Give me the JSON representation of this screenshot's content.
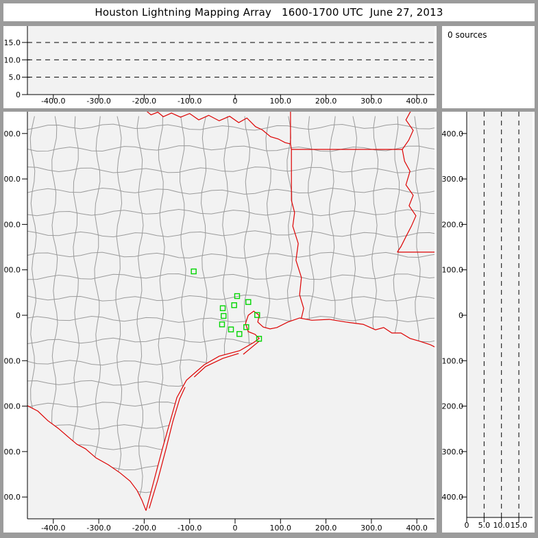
{
  "window": {
    "title": "Houston Lightning Mapping Array   1600-1700 UTC  June 27, 2013"
  },
  "status": {
    "sources_label": "0 sources"
  },
  "colors": {
    "frame": "#9b9b9b",
    "panel_bg": "#ffffff",
    "plot_bg": "#f2f2f2",
    "county_line": "#9a9a9a",
    "state_line": "#dd0000",
    "station": "#00d500",
    "axis": "#000000"
  },
  "chart_data": {
    "type": "scatter",
    "title": "Houston Lightning Mapping Array   1600-1700 UTC  June 27, 2013",
    "source_count_label": "0 sources",
    "panels": {
      "alt_ew": {
        "description": "altitude (km) vs east-west distance (km), empty - 0 sources",
        "xlim": [
          -457,
          443
        ],
        "ylim": [
          0,
          20
        ],
        "x_ticks": [
          -400,
          -300,
          -200,
          -100,
          0,
          100,
          200,
          300,
          400
        ],
        "x_tick_labels": [
          "-400.0",
          "-300.0",
          "-200.0",
          "-100.0",
          "0",
          "100.0",
          "200.0",
          "300.0",
          "400.0"
        ],
        "y_ticks": [
          0,
          5,
          10,
          15
        ],
        "y_tick_labels": [
          "0",
          "5.0",
          "10.0",
          "15.0"
        ],
        "grid_y_dashed": [
          5,
          10,
          15
        ],
        "points": []
      },
      "plan_view": {
        "description": "plan view map, km east-west vs km north-south centered on Houston",
        "xlim": [
          -457,
          439
        ],
        "ylim": [
          -448,
          448
        ],
        "x_ticks": [
          -400,
          -300,
          -200,
          -100,
          0,
          100,
          200,
          300,
          400
        ],
        "x_tick_labels": [
          "-400.0",
          "-300.0",
          "-200.0",
          "-100.0",
          "0",
          "100.0",
          "200.0",
          "300.0",
          "400.0"
        ],
        "y_ticks": [
          400,
          300,
          200,
          100,
          0,
          -100,
          -200,
          -300,
          -400
        ],
        "y_tick_labels": [
          "400.0",
          "300.0",
          "200.0",
          "100.0",
          "0",
          "-100.0",
          "-200.0",
          "-300.0",
          "-400.0"
        ],
        "lightning_points": [],
        "stations_km": [
          [
            -91,
            96.5
          ],
          [
            4.5,
            42.2
          ],
          [
            29.1,
            29.1
          ],
          [
            -2.0,
            22.2
          ],
          [
            -27.1,
            15.5
          ],
          [
            48.7,
            0.5
          ],
          [
            -25.2,
            -1.5
          ],
          [
            -28.7,
            -20.1
          ],
          [
            24.6,
            -26.1
          ],
          [
            -9.0,
            -31.2
          ],
          [
            9.5,
            -41.2
          ],
          [
            52.8,
            -51.7
          ]
        ],
        "state_borders_km": {
          "red_river_tx_ok": [
            [
              -198,
              452
            ],
            [
              -185,
              441
            ],
            [
              -170,
              447
            ],
            [
              -158,
              437
            ],
            [
              -140,
              445
            ],
            [
              -120,
              436
            ],
            [
              -100,
              444
            ],
            [
              -80,
              430
            ],
            [
              -58,
              440
            ],
            [
              -35,
              428
            ],
            [
              -12,
              438
            ],
            [
              8,
              424
            ],
            [
              26,
              434
            ],
            [
              45,
              415
            ],
            [
              60,
              408
            ],
            [
              78,
              393
            ],
            [
              95,
              388
            ],
            [
              110,
              380
            ],
            [
              122,
              377
            ]
          ],
          "ok_ar_tx_ar": [
            [
              122,
              452
            ],
            [
              122,
              377
            ],
            [
              124,
              365
            ]
          ],
          "ar_la": [
            [
              124,
              365
            ],
            [
              368,
              365
            ]
          ],
          "tx_la_sabine": [
            [
              124,
              365
            ],
            [
              124,
              253
            ],
            [
              131,
              226
            ],
            [
              127,
              196
            ],
            [
              139,
              158
            ],
            [
              134,
              121
            ],
            [
              146,
              83
            ],
            [
              142,
              45
            ],
            [
              151,
              15
            ],
            [
              146,
              -6
            ]
          ],
          "mississippi_river": [
            [
              388,
              452
            ],
            [
              376,
              430
            ],
            [
              392,
              407
            ],
            [
              382,
              385
            ],
            [
              368,
              365
            ],
            [
              373,
              339
            ],
            [
              385,
              317
            ],
            [
              376,
              287
            ],
            [
              392,
              264
            ],
            [
              383,
              241
            ],
            [
              398,
              219
            ],
            [
              388,
              196
            ],
            [
              376,
              173
            ],
            [
              365,
              151
            ],
            [
              357,
              139
            ]
          ],
          "la_ms": [
            [
              357,
              139
            ],
            [
              460,
              139
            ]
          ],
          "rio_grande": [
            [
              -457,
              -199
            ],
            [
              -434,
              -211
            ],
            [
              -412,
              -232
            ],
            [
              -389,
              -249
            ],
            [
              -367,
              -268
            ],
            [
              -348,
              -284
            ],
            [
              -329,
              -294
            ],
            [
              -306,
              -314
            ],
            [
              -279,
              -329
            ],
            [
              -253,
              -347
            ],
            [
              -231,
              -365
            ],
            [
              -216,
              -385
            ],
            [
              -205,
              -407
            ],
            [
              -196,
              -430
            ]
          ],
          "gulf_coast": [
            [
              -196,
              -430
            ],
            [
              -178,
              -362
            ],
            [
              -160,
              -294
            ],
            [
              -143,
              -234
            ],
            [
              -128,
              -181
            ],
            [
              -107,
              -143
            ],
            [
              -90,
              -128
            ],
            [
              -68,
              -109
            ],
            [
              -35,
              -90
            ],
            [
              10,
              -78
            ],
            [
              41,
              -60
            ],
            [
              53,
              -51
            ],
            [
              44,
              -42
            ],
            [
              29,
              -36
            ],
            [
              23,
              -18
            ],
            [
              29,
              0
            ],
            [
              41,
              9
            ],
            [
              53,
              0
            ],
            [
              50,
              -15
            ],
            [
              62,
              -26
            ],
            [
              77,
              -30
            ],
            [
              92,
              -27
            ],
            [
              116,
              -15
            ],
            [
              142,
              -6
            ],
            [
              169,
              -11
            ],
            [
              207,
              -9
            ],
            [
              244,
              -15
            ],
            [
              282,
              -20
            ],
            [
              309,
              -32
            ],
            [
              327,
              -27
            ],
            [
              345,
              -39
            ],
            [
              365,
              -39
            ],
            [
              385,
              -51
            ],
            [
              406,
              -57
            ],
            [
              430,
              -65
            ],
            [
              456,
              -78
            ]
          ],
          "barrier_padre": [
            [
              -189,
              -425
            ],
            [
              -170,
              -362
            ],
            [
              -152,
              -294
            ],
            [
              -137,
              -234
            ],
            [
              -122,
              -184
            ],
            [
              -110,
              -158
            ]
          ],
          "barrier_matagorda": [
            [
              -90,
              -136
            ],
            [
              -65,
              -113
            ],
            [
              -27,
              -95
            ],
            [
              8,
              -84
            ]
          ],
          "barrier_galveston": [
            [
              18,
              -86
            ],
            [
              53,
              -57
            ]
          ]
        },
        "county_grid": {
          "col_start": -444,
          "col_step": 47,
          "row_start": -432,
          "row_step": 47,
          "jitter_km": 5
        }
      },
      "alt_ns": {
        "description": "north-south distance (km) vs altitude (km), empty - 0 sources",
        "xlim": [
          0,
          19
        ],
        "ylim": [
          -448,
          448
        ],
        "x_ticks": [
          0,
          5,
          10,
          15
        ],
        "x_tick_labels": [
          "0",
          "5.0",
          "10.0",
          "15.0"
        ],
        "y_ticks": [
          400,
          300,
          200,
          100,
          0,
          -100,
          -200,
          -300,
          -400
        ],
        "y_tick_labels": [
          "400.0",
          "300.0",
          "200.0",
          "100.0",
          "0",
          "-100.0",
          "-200.0",
          "-300.0",
          "-400.0"
        ],
        "grid_x_dashed": [
          5,
          10,
          15
        ],
        "points": []
      }
    }
  }
}
